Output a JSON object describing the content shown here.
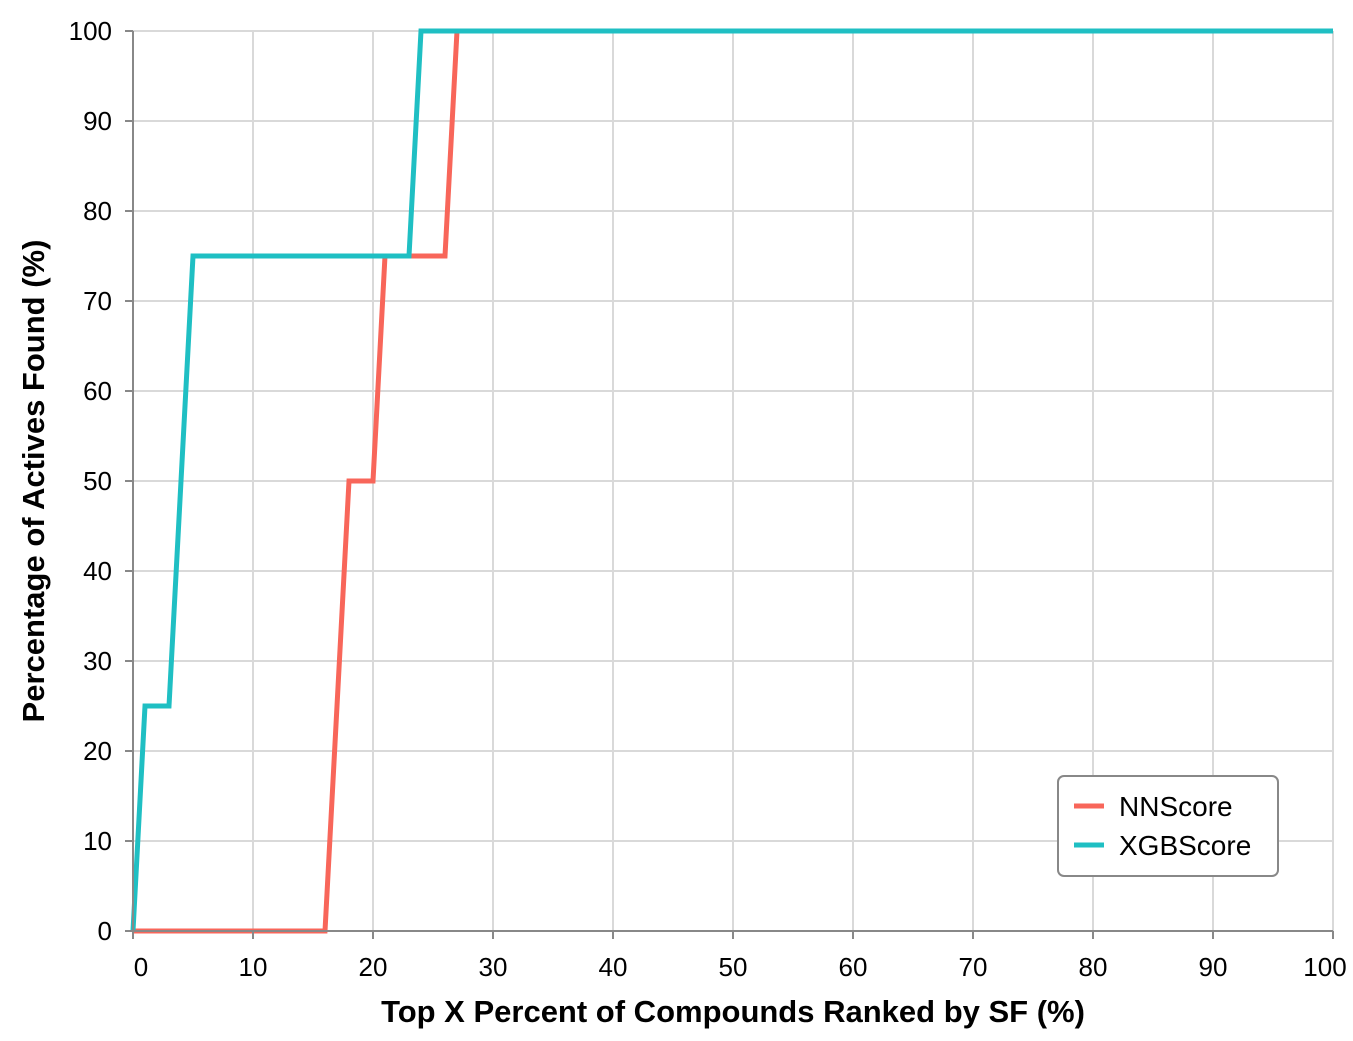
{
  "chart_data": {
    "type": "line",
    "title": "",
    "xlabel": "Top X Percent of Compounds Ranked by SF (%)",
    "ylabel": "Percentage of Actives Found (%)",
    "xlim": [
      0,
      100
    ],
    "ylim": [
      0,
      100
    ],
    "xticks": [
      0,
      10,
      20,
      30,
      40,
      50,
      60,
      70,
      80,
      90,
      100
    ],
    "yticks": [
      0,
      10,
      20,
      30,
      40,
      50,
      60,
      70,
      80,
      90,
      100
    ],
    "grid": true,
    "legend_position": "bottom-right",
    "series": [
      {
        "name": "NNScore",
        "color": "#f8665a",
        "x": [
          0,
          16,
          18,
          20,
          21,
          26,
          27,
          100
        ],
        "y": [
          0,
          0,
          50,
          50,
          75,
          75,
          100,
          100
        ]
      },
      {
        "name": "XGBScore",
        "color": "#1fbfc3",
        "x": [
          0,
          1,
          3,
          5,
          23,
          24,
          100
        ],
        "y": [
          0,
          25,
          25,
          75,
          75,
          100,
          100
        ]
      }
    ]
  }
}
